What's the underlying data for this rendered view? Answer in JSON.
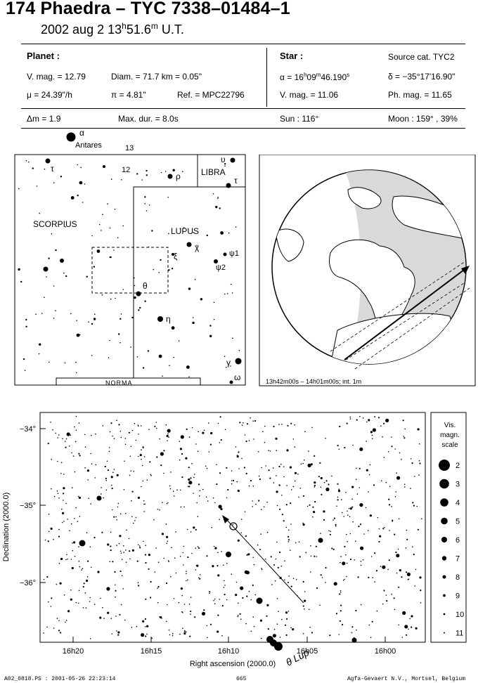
{
  "header": {
    "title": "174 Phaedra  –  TYC 7338–01484–1",
    "date": "2002 aug  2  13",
    "time_h_sup": "h",
    "time_min": "51.6",
    "time_m_sup": "m",
    "time_ut": " U.T."
  },
  "planet": {
    "heading": "Planet :",
    "vmag": "V. mag. = 12.79",
    "diam": "Diam. = 71.7 km = 0.05\"",
    "mu": "μ =  24.39\"/h",
    "pi": "π =  4.81\"",
    "ref": "Ref. = MPC22796",
    "dm": "Δm = 1.9",
    "maxdur": "Max. dur. = 8.0s"
  },
  "star": {
    "heading": "Star :",
    "source": "Source cat.  TYC2",
    "alpha_a": "α = 16",
    "alpha_h": "h",
    "alpha_b": "09",
    "alpha_m": "m",
    "alpha_c": "46.190",
    "alpha_s": "s",
    "delta": "δ = −35°17'16.90\"",
    "vmag": "V. mag. = 11.06",
    "phmag": "Ph. mag. = 11.65",
    "sun": "Sun : 116°",
    "moon": "Moon : 159° , 39%"
  },
  "finder": {
    "labels": {
      "alpha": "α",
      "antares": "Antares",
      "n13": "13",
      "tau1": "τ",
      "n12": "12",
      "rho": "ρ",
      "upsilon": "υ",
      "libra": "LIBRA",
      "tau2": "τ",
      "scorpius": "SCORPIUS",
      "lupus": "LUPUS",
      "chi": "χ",
      "xi": "ξ",
      "psi1": "ψ1",
      "psi2": "ψ2",
      "theta": "θ",
      "eta": "η",
      "gamma": "γ",
      "omega": "ω",
      "norma": "NORMA"
    }
  },
  "globe": {
    "caption": "13h42m00s – 14h01m00s; int.  1m"
  },
  "detail": {
    "y_axis_label": "Declination (2000.0)",
    "x_axis_label": "Right ascension (2000.0)",
    "y_ticks": [
      "−34°",
      "−35°",
      "−36°"
    ],
    "x_ticks": [
      "16h20",
      "16h15",
      "16h10",
      "16h05",
      "16h00"
    ],
    "star_label": "θ Lup"
  },
  "scale": {
    "title_lines": [
      "Vis.",
      "magn.",
      "scale"
    ],
    "mags": [
      "2",
      "3",
      "4",
      "5",
      "6",
      "7",
      "8",
      "9",
      "10",
      "11"
    ]
  },
  "footer": {
    "left": "A02_0818.PS : 2001-05-26 22:23:14",
    "center": "665",
    "right": "Agfa-Gevaert N.V., Mortsel, Belgium"
  }
}
